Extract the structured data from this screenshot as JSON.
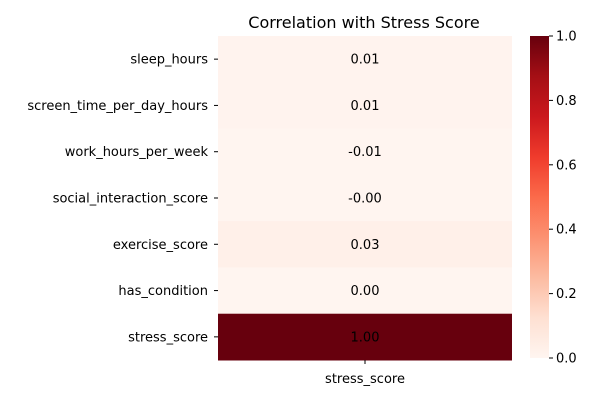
{
  "chart_data": {
    "type": "heatmap",
    "title": "Correlation with Stress Score",
    "rows": [
      "sleep_hours",
      "screen_time_per_day_hours",
      "work_hours_per_week",
      "social_interaction_score",
      "exercise_score",
      "has_condition",
      "stress_score"
    ],
    "columns": [
      "stress_score"
    ],
    "values": [
      0.01,
      0.01,
      -0.01,
      -0.003,
      0.03,
      0.0,
      1.0
    ],
    "cell_labels": [
      "0.01",
      "0.01",
      "-0.01",
      "-0.00",
      "0.03",
      "0.00",
      "1.00"
    ],
    "colormap": "Reds",
    "colorbar": {
      "range": [
        0,
        1
      ],
      "ticks": [
        "0.0",
        "0.2",
        "0.4",
        "0.6",
        "0.8",
        "1.0"
      ]
    }
  }
}
